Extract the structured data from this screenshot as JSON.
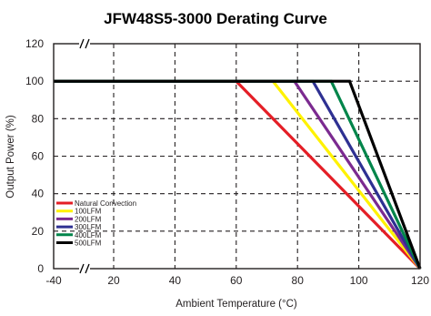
{
  "chart_data": {
    "type": "line",
    "title": "JFW48S5-3000 Derating Curve",
    "xlabel": "Ambient Temperature (°C)",
    "ylabel": "Output Power (%)",
    "xlim": [
      -40,
      120
    ],
    "ylim": [
      0,
      120
    ],
    "axis_break": "between -40 and 20 on the x axis",
    "x_ticks": [
      {
        "value": -40,
        "label": "-40"
      },
      {
        "value": 20,
        "label": "20"
      },
      {
        "value": 40,
        "label": "40"
      },
      {
        "value": 60,
        "label": "60"
      },
      {
        "value": 80,
        "label": "80"
      },
      {
        "value": 100,
        "label": "100"
      },
      {
        "value": 120,
        "label": "120"
      }
    ],
    "y_ticks": [
      {
        "value": 0,
        "label": "0"
      },
      {
        "value": 20,
        "label": "20"
      },
      {
        "value": 40,
        "label": "40"
      },
      {
        "value": 60,
        "label": "60"
      },
      {
        "value": 80,
        "label": "80"
      },
      {
        "value": 100,
        "label": "100"
      },
      {
        "value": 120,
        "label": "120"
      }
    ],
    "grid": true,
    "grid_style": "dashed",
    "legend_position": "bottom-left",
    "series": [
      {
        "name": "Natural Convection",
        "color": "#e41e26",
        "x": [
          -40,
          60,
          120
        ],
        "y": [
          100,
          100,
          0
        ]
      },
      {
        "name": "100LFM",
        "color": "#fff200",
        "x": [
          -40,
          72,
          120
        ],
        "y": [
          100,
          100,
          0
        ]
      },
      {
        "name": "200LFM",
        "color": "#7b2a90",
        "x": [
          -40,
          79,
          120
        ],
        "y": [
          100,
          100,
          0
        ]
      },
      {
        "name": "300LFM",
        "color": "#2e3092",
        "x": [
          -40,
          85,
          120
        ],
        "y": [
          100,
          100,
          0
        ]
      },
      {
        "name": "400LFM",
        "color": "#00854a",
        "x": [
          -40,
          91,
          120
        ],
        "y": [
          100,
          100,
          0
        ]
      },
      {
        "name": "500LFM",
        "color": "#000000",
        "x": [
          -40,
          97,
          120
        ],
        "y": [
          100,
          100,
          0
        ]
      }
    ]
  }
}
